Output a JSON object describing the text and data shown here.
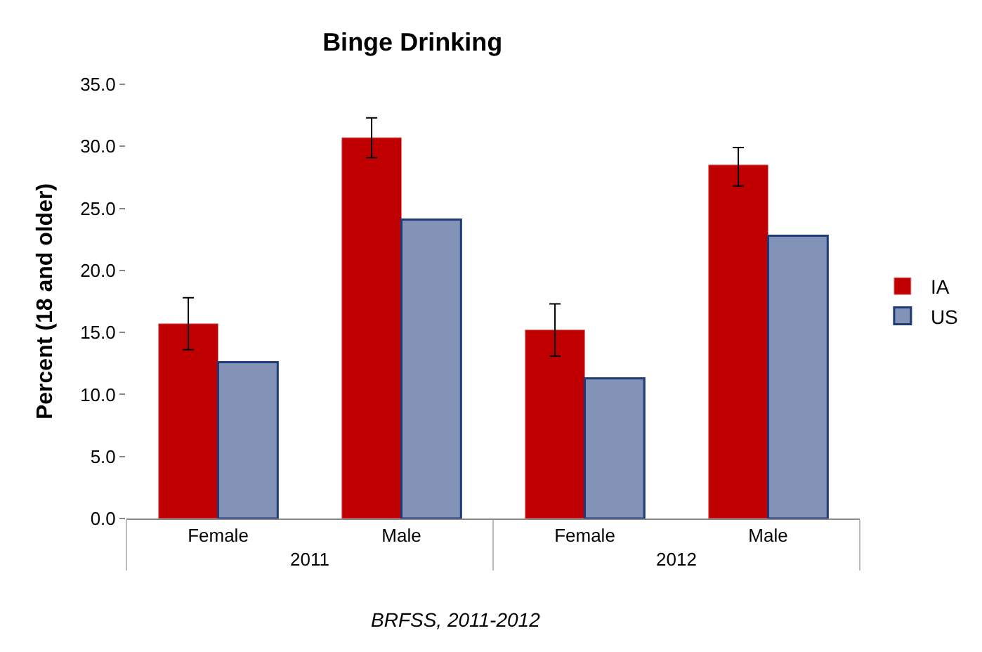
{
  "chart_data": {
    "type": "bar",
    "title": "Binge Drinking",
    "ylabel": "Percent (18 and older)",
    "categories": [
      "Female",
      "Male",
      "Female",
      "Male"
    ],
    "annotations": [
      "2011",
      "2012",
      "BRFSS, 2011-2012"
    ],
    "series": [
      {
        "name": "IA",
        "color": "#c00000",
        "values": [
          15.7,
          30.7,
          15.2,
          28.5
        ],
        "errors": [
          [
            13.6,
            17.8
          ],
          [
            29.1,
            32.3
          ],
          [
            13.1,
            17.3
          ],
          [
            26.8,
            29.9
          ]
        ]
      },
      {
        "name": "US",
        "color": "#8393b8",
        "values": [
          12.6,
          24.1,
          11.3,
          22.8
        ]
      }
    ],
    "ylim": [
      0,
      35
    ],
    "yticks": [
      {
        "value": 0,
        "label": "0.0"
      },
      {
        "value": 5,
        "label": "5.0"
      },
      {
        "value": 10,
        "label": "10.0"
      },
      {
        "value": 15,
        "label": "15.0"
      },
      {
        "value": 20,
        "label": "20.0"
      },
      {
        "value": 25,
        "label": "25.0"
      },
      {
        "value": 30,
        "label": "30.0"
      },
      {
        "value": 35,
        "label": "35.0"
      }
    ],
    "grid": false,
    "legend": "right"
  }
}
